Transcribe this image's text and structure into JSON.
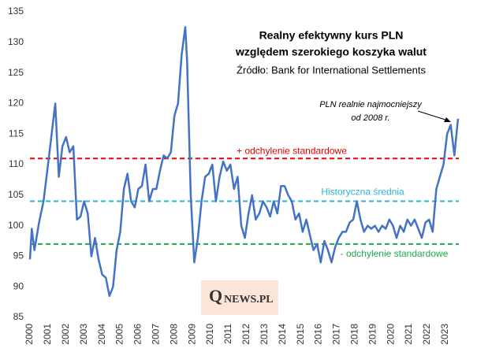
{
  "chart_data": {
    "type": "line",
    "title": [
      "Realny efektywny kurs PLN",
      "względem szerokiego koszyka walut"
    ],
    "subtitle": "Źródło: Bank for International Settlements",
    "annotation": [
      "PLN realnie najmocniejszy",
      "od 2008 r."
    ],
    "logo": {
      "initial": "Q",
      "rest": "NEWS.PL"
    },
    "x": [
      2000.0,
      2000.1,
      2000.25,
      2000.5,
      2000.75,
      2001.0,
      2001.4,
      2001.6,
      2001.8,
      2002.0,
      2002.2,
      2002.4,
      2002.6,
      2002.8,
      2003.0,
      2003.2,
      2003.4,
      2003.6,
      2003.8,
      2004.0,
      2004.2,
      2004.4,
      2004.6,
      2004.8,
      2005.0,
      2005.2,
      2005.4,
      2005.6,
      2005.8,
      2006.0,
      2006.2,
      2006.4,
      2006.6,
      2006.8,
      2007.0,
      2007.2,
      2007.4,
      2007.6,
      2007.8,
      2008.0,
      2008.2,
      2008.4,
      2008.6,
      2008.7,
      2008.9,
      2009.1,
      2009.3,
      2009.5,
      2009.7,
      2009.9,
      2010.1,
      2010.3,
      2010.5,
      2010.7,
      2010.9,
      2011.1,
      2011.3,
      2011.5,
      2011.7,
      2011.9,
      2012.1,
      2012.3,
      2012.5,
      2012.7,
      2012.9,
      2013.1,
      2013.3,
      2013.5,
      2013.7,
      2013.9,
      2014.1,
      2014.3,
      2014.5,
      2014.7,
      2014.9,
      2015.1,
      2015.3,
      2015.5,
      2015.7,
      2015.9,
      2016.1,
      2016.3,
      2016.5,
      2016.7,
      2016.9,
      2017.1,
      2017.3,
      2017.5,
      2017.7,
      2017.9,
      2018.1,
      2018.3,
      2018.5,
      2018.7,
      2018.9,
      2019.1,
      2019.3,
      2019.5,
      2019.7,
      2019.9,
      2020.1,
      2020.3,
      2020.5,
      2020.7,
      2020.9,
      2021.1,
      2021.3,
      2021.5,
      2021.7,
      2021.9,
      2022.1,
      2022.3,
      2022.5,
      2022.7,
      2022.9,
      2023.1,
      2023.3,
      2023.5,
      2023.7
    ],
    "series": [
      {
        "color": "#4472c4",
        "values": [
          94.5,
          99.5,
          96,
          100.5,
          104,
          110,
          120,
          108,
          113,
          114.5,
          112,
          113,
          101,
          101.5,
          104,
          102,
          95,
          98,
          94.5,
          92,
          91.5,
          88.5,
          90,
          96,
          99,
          106,
          108.5,
          104,
          103,
          106,
          106.5,
          110,
          104,
          106,
          106,
          109,
          111.5,
          111,
          112,
          118,
          120,
          128,
          132.5,
          127,
          105,
          94,
          98,
          104,
          108,
          108.5,
          110,
          104,
          108,
          110.5,
          109,
          110,
          106,
          108,
          100,
          98,
          102,
          105,
          101,
          102,
          104,
          103,
          101.5,
          104,
          102,
          106.5,
          106.5,
          105,
          104,
          101,
          102,
          99,
          101,
          98.5,
          96,
          97,
          94,
          97.5,
          96,
          94,
          96.5,
          98,
          99,
          99,
          100.5,
          101,
          104,
          101,
          99,
          100,
          99.5,
          100,
          99,
          100,
          99.5,
          101,
          100,
          98,
          100,
          99,
          101,
          100,
          101,
          99.5,
          98,
          100.5,
          101,
          99,
          106,
          108,
          110,
          115,
          116.5,
          111.5,
          117.5
        ]
      }
    ],
    "reference_lines": [
      {
        "value": 111,
        "label": "+ odchylenie standardowe",
        "color": "#e00000"
      },
      {
        "value": 104,
        "label": "Historyczna średnia",
        "color": "#2eb2d6"
      },
      {
        "value": 97,
        "label": "- odchylenie standardowe",
        "color": "#1fa84a"
      }
    ],
    "xlim": [
      2000,
      2023.75
    ],
    "xticks": [
      2000,
      2001,
      2002,
      2003,
      2004,
      2005,
      2006,
      2007,
      2008,
      2009,
      2010,
      2011,
      2012,
      2013,
      2014,
      2015,
      2016,
      2017,
      2018,
      2019,
      2020,
      2021,
      2022,
      2023
    ],
    "ylim": [
      85,
      135
    ],
    "yticks": [
      85,
      90,
      95,
      100,
      105,
      110,
      115,
      120,
      125,
      130,
      135
    ],
    "grid": false
  }
}
